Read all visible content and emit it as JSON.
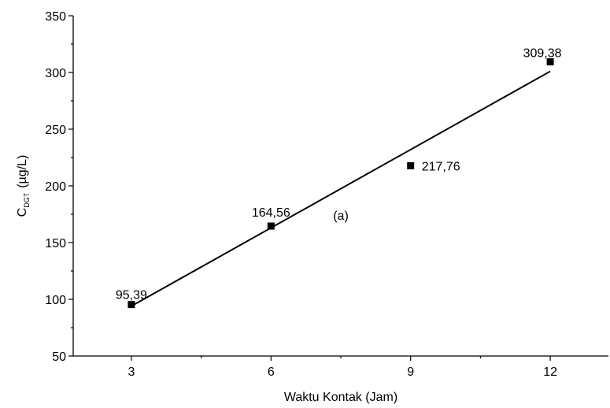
{
  "chart_data": {
    "type": "scatter",
    "x": [
      3,
      6,
      9,
      12
    ],
    "y": [
      95.39,
      164.56,
      217.76,
      309.38
    ],
    "data_labels": [
      "95,39",
      "164,56",
      "217,76",
      "309,38"
    ],
    "trendline": {
      "x": [
        3,
        12
      ],
      "y": [
        94,
        301
      ]
    },
    "xlabel": "Waktu Kontak (Jam)",
    "ylabel_main": "C",
    "ylabel_sub": "DGT",
    "ylabel_unit": "(µg/L)",
    "annotation": "(a)",
    "annotation_pos": {
      "x": 7.5,
      "y": 170
    },
    "xlim": [
      1.75,
      13.25
    ],
    "ylim": [
      50,
      350
    ],
    "xticks": [
      3,
      6,
      9,
      12
    ],
    "xtick_labels": [
      "3",
      "6",
      "9",
      "12"
    ],
    "yticks": [
      50,
      100,
      150,
      200,
      250,
      300,
      350
    ],
    "ytick_labels": [
      "50",
      "100",
      "150",
      "200",
      "250",
      "300",
      "350"
    ],
    "grid": false,
    "legend": "none"
  }
}
